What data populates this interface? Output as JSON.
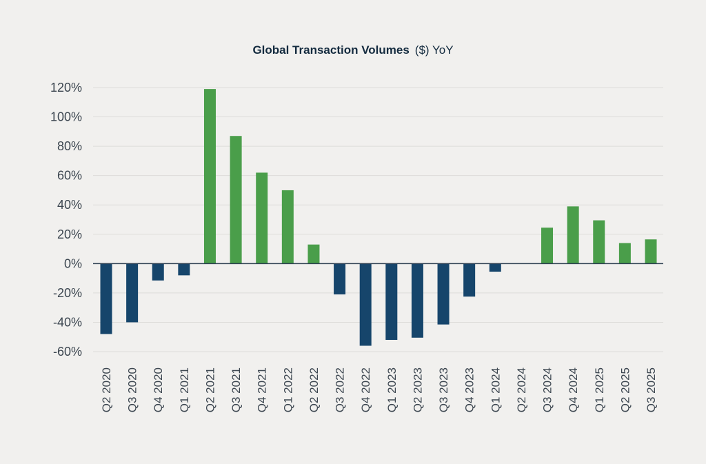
{
  "chart_data": {
    "type": "bar",
    "title": "Global Transaction Volumes ($) YoY",
    "title_parts": {
      "bold": "Global Transaction Volumes",
      "regular": "($) YoY"
    },
    "xlabel": "",
    "ylabel": "",
    "ylim": [
      -60,
      120
    ],
    "yticks": [
      -60,
      -40,
      -20,
      0,
      20,
      40,
      60,
      80,
      100,
      120
    ],
    "ytick_labels": [
      "-60%",
      "-40%",
      "-20%",
      "0%",
      "20%",
      "40%",
      "60%",
      "80%",
      "100%",
      "120%"
    ],
    "grid": true,
    "categories": [
      "Q2 2020",
      "Q3 2020",
      "Q4 2020",
      "Q1 2021",
      "Q2 2021",
      "Q3 2021",
      "Q4 2021",
      "Q1 2022",
      "Q2 2022",
      "Q3 2022",
      "Q4 2022",
      "Q1 2023",
      "Q2 2023",
      "Q3 2023",
      "Q4 2023",
      "Q1 2024",
      "Q2 2024",
      "Q3 2024",
      "Q4 2024",
      "Q1 2025",
      "Q2 2025",
      "Q3 2025"
    ],
    "values": [
      -48,
      -40,
      -11.5,
      -8,
      119,
      87,
      62,
      50,
      13,
      -21,
      -56,
      -52,
      -50.5,
      -41.5,
      -22.5,
      -5.5,
      0,
      24.5,
      39,
      29.5,
      14,
      16.5
    ],
    "colors": {
      "positive": "#4a9e4a",
      "negative": "#16456b",
      "axis": "#2c3e50",
      "grid": "#dddcd9"
    }
  }
}
